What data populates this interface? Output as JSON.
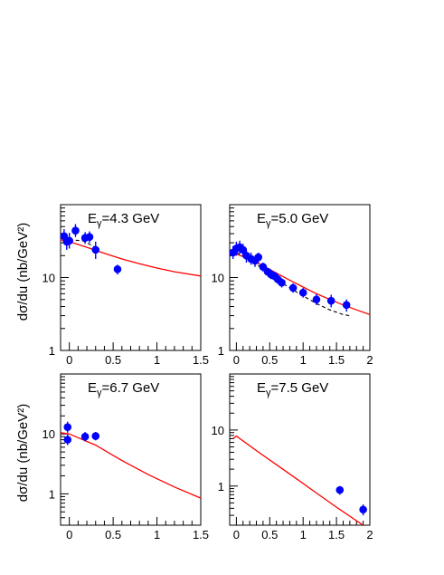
{
  "figure": {
    "ylabel": "dσ/du  (nb/GeV²)",
    "colors": {
      "data": "#0000ff",
      "solid_curve": "#ff0000",
      "dashed_curve": "#000000",
      "frame": "#000000"
    }
  },
  "chart_data": [
    {
      "type": "scatter",
      "title": "Eγ=4.3 GeV",
      "title_main": "E",
      "title_sub": "γ",
      "title_rest": "=4.3 GeV",
      "xlabel": "",
      "ylabel": "dσ/du  (nb/GeV²)",
      "log_y": true,
      "xlim": [
        -0.1,
        1.5
      ],
      "ylim": [
        1,
        100
      ],
      "xticks": [
        "0",
        "0.5",
        "1",
        "1.5"
      ],
      "yticks": [
        "1",
        "10"
      ],
      "points": [
        {
          "x": -0.06,
          "y": 37,
          "lo": 30,
          "hi": 46
        },
        {
          "x": -0.03,
          "y": 31,
          "lo": 24,
          "hi": 40
        },
        {
          "x": 0.0,
          "y": 32,
          "lo": 25,
          "hi": 41
        },
        {
          "x": 0.07,
          "y": 44,
          "lo": 36,
          "hi": 54
        },
        {
          "x": 0.18,
          "y": 35,
          "lo": 29,
          "hi": 42
        },
        {
          "x": 0.23,
          "y": 36,
          "lo": 30,
          "hi": 43
        },
        {
          "x": 0.3,
          "y": 24,
          "lo": 18,
          "hi": 31
        },
        {
          "x": 0.55,
          "y": 13,
          "lo": 11,
          "hi": 15
        }
      ],
      "solid_curve": [
        [
          -0.1,
          33
        ],
        [
          0.0,
          31
        ],
        [
          0.2,
          26
        ],
        [
          0.4,
          21.5
        ],
        [
          0.6,
          18
        ],
        [
          0.8,
          15.5
        ],
        [
          1.0,
          13.5
        ],
        [
          1.2,
          12
        ],
        [
          1.5,
          10.5
        ]
      ],
      "dashed_curve": [
        [
          0.0,
          33
        ],
        [
          0.15,
          32
        ],
        [
          0.3,
          26
        ]
      ]
    },
    {
      "type": "scatter",
      "title": "Eγ=5.0 GeV",
      "title_main": "E",
      "title_sub": "γ",
      "title_rest": "=5.0 GeV",
      "xlabel": "",
      "ylabel": "",
      "log_y": true,
      "xlim": [
        -0.1,
        2.0
      ],
      "ylim": [
        1,
        100
      ],
      "xticks": [
        "0",
        "0.5",
        "1",
        "1.5",
        "2"
      ],
      "yticks": [
        "1",
        "10"
      ],
      "points": [
        {
          "x": -0.05,
          "y": 22,
          "lo": 18,
          "hi": 27
        },
        {
          "x": 0.0,
          "y": 25,
          "lo": 20,
          "hi": 31
        },
        {
          "x": 0.05,
          "y": 26,
          "lo": 21,
          "hi": 32
        },
        {
          "x": 0.1,
          "y": 24,
          "lo": 20,
          "hi": 29
        },
        {
          "x": 0.15,
          "y": 20,
          "lo": 16,
          "hi": 24
        },
        {
          "x": 0.22,
          "y": 18,
          "lo": 15,
          "hi": 22
        },
        {
          "x": 0.28,
          "y": 17,
          "lo": 14,
          "hi": 20
        },
        {
          "x": 0.33,
          "y": 19,
          "lo": 16,
          "hi": 22
        },
        {
          "x": 0.4,
          "y": 14,
          "lo": 12,
          "hi": 16
        },
        {
          "x": 0.47,
          "y": 12,
          "lo": 10.5,
          "hi": 13.5
        },
        {
          "x": 0.52,
          "y": 11,
          "lo": 9.5,
          "hi": 12.5
        },
        {
          "x": 0.57,
          "y": 10.5,
          "lo": 9,
          "hi": 12
        },
        {
          "x": 0.62,
          "y": 9.5,
          "lo": 8.2,
          "hi": 11
        },
        {
          "x": 0.68,
          "y": 8.5,
          "lo": 7.3,
          "hi": 9.8
        },
        {
          "x": 0.85,
          "y": 7.2,
          "lo": 6.2,
          "hi": 8.3
        },
        {
          "x": 1.0,
          "y": 6.2,
          "lo": 5.3,
          "hi": 7.2
        },
        {
          "x": 1.2,
          "y": 5.0,
          "lo": 4.2,
          "hi": 5.9
        },
        {
          "x": 1.42,
          "y": 4.8,
          "lo": 3.9,
          "hi": 5.8
        },
        {
          "x": 1.65,
          "y": 4.2,
          "lo": 3.4,
          "hi": 5.0
        }
      ],
      "solid_curve": [
        [
          -0.1,
          22
        ],
        [
          0.0,
          21
        ],
        [
          0.2,
          18
        ],
        [
          0.4,
          14.5
        ],
        [
          0.6,
          11.5
        ],
        [
          0.8,
          9.2
        ],
        [
          1.0,
          7.4
        ],
        [
          1.2,
          6.0
        ],
        [
          1.4,
          5.0
        ],
        [
          1.6,
          4.2
        ],
        [
          1.8,
          3.6
        ],
        [
          2.0,
          3.1
        ]
      ],
      "dashed_curve": [
        [
          0.0,
          22
        ],
        [
          0.2,
          18
        ],
        [
          0.4,
          13
        ],
        [
          0.6,
          9.5
        ],
        [
          0.8,
          7.2
        ],
        [
          1.0,
          5.6
        ],
        [
          1.2,
          4.4
        ],
        [
          1.4,
          3.6
        ],
        [
          1.6,
          3.1
        ],
        [
          1.7,
          3.0
        ]
      ]
    },
    {
      "type": "scatter",
      "title": "Eγ=6.7 GeV",
      "title_main": "E",
      "title_sub": "γ",
      "title_rest": "=6.7 GeV",
      "xlabel": "",
      "ylabel": "dσ/du  (nb/GeV²)",
      "log_y": true,
      "xlim": [
        -0.1,
        1.5
      ],
      "ylim": [
        0.3,
        100
      ],
      "xticks": [
        "0",
        "0.5",
        "1",
        "1.5"
      ],
      "yticks": [
        "1",
        "10"
      ],
      "points": [
        {
          "x": -0.02,
          "y": 13,
          "lo": 10.5,
          "hi": 16
        },
        {
          "x": -0.02,
          "y": 8,
          "lo": 6.5,
          "hi": 9.8
        },
        {
          "x": 0.18,
          "y": 9,
          "lo": 7.5,
          "hi": 10.8
        },
        {
          "x": 0.3,
          "y": 9.2,
          "lo": 7.8,
          "hi": 10.8
        }
      ],
      "solid_curve": [
        [
          -0.1,
          10.5
        ],
        [
          0.0,
          10.0
        ],
        [
          0.3,
          6.5
        ],
        [
          0.6,
          3.6
        ],
        [
          0.9,
          2.1
        ],
        [
          1.2,
          1.3
        ],
        [
          1.5,
          0.85
        ]
      ]
    },
    {
      "type": "scatter",
      "title": "Eγ=7.5 GeV",
      "title_main": "E",
      "title_sub": "γ",
      "title_rest": "=7.5 GeV",
      "xlabel": "",
      "ylabel": "",
      "log_y": true,
      "xlim": [
        -0.1,
        2.0
      ],
      "ylim": [
        0.2,
        100
      ],
      "xticks": [
        "0",
        "0.5",
        "1",
        "1.5",
        "2"
      ],
      "yticks": [
        "1",
        "10"
      ],
      "points": [
        {
          "x": 1.55,
          "y": 0.85,
          "lo": 0.7,
          "hi": 1.0
        },
        {
          "x": 1.9,
          "y": 0.38,
          "lo": 0.3,
          "hi": 0.47
        }
      ],
      "solid_curve": [
        [
          -0.05,
          7.0
        ],
        [
          0.0,
          7.8
        ],
        [
          0.3,
          4.3
        ],
        [
          0.6,
          2.4
        ],
        [
          0.9,
          1.35
        ],
        [
          1.2,
          0.75
        ],
        [
          1.5,
          0.42
        ],
        [
          1.8,
          0.24
        ],
        [
          1.9,
          0.2
        ]
      ]
    }
  ]
}
